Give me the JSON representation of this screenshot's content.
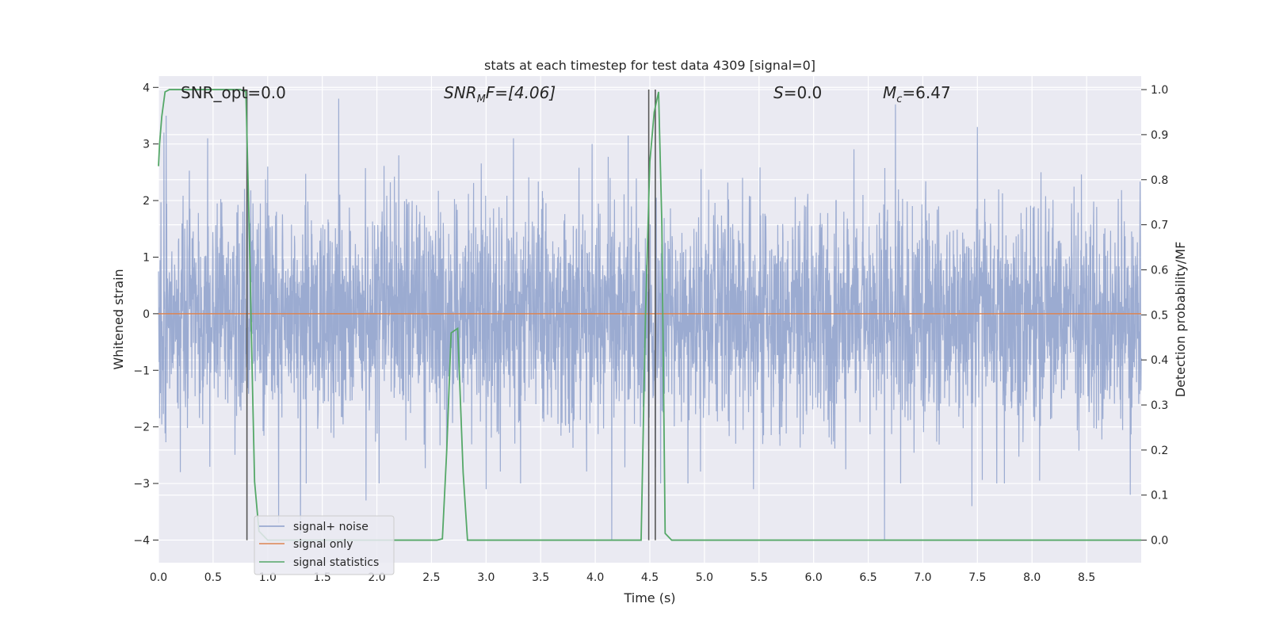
{
  "chart_data": {
    "type": "line",
    "title": "stats at each timestep for test data 4309 [signal=0]",
    "xlabel": "Time (s)",
    "ylabel": "Whitened strain",
    "ylabel_right": "Detection probability/MF",
    "xlim": [
      0.0,
      9.0
    ],
    "ylim": [
      -4.4,
      4.2
    ],
    "ylim_right": [
      -0.05,
      1.03
    ],
    "grid": true,
    "legend_position": "lower-left",
    "x_ticks": [
      "0.0",
      "0.5",
      "1.0",
      "1.5",
      "2.0",
      "2.5",
      "3.0",
      "3.5",
      "4.0",
      "4.5",
      "5.0",
      "5.5",
      "6.0",
      "6.5",
      "7.0",
      "7.5",
      "8.0",
      "8.5"
    ],
    "y_ticks": [
      "4",
      "3",
      "2",
      "1",
      "0",
      "−1",
      "−2",
      "−3",
      "−4"
    ],
    "y_ticks_right": [
      "1.0",
      "0.9",
      "0.8",
      "0.7",
      "0.6",
      "0.5",
      "0.4",
      "0.3",
      "0.2",
      "0.1",
      "0.0"
    ],
    "annotations": {
      "snr_opt": "SNR_opt=0.0",
      "snr_mf_main": "SNR",
      "snr_mf_sub": "M",
      "snr_mf_rest": "F=[4.06]",
      "s_main": "S",
      "s_rest": "=0.0",
      "mc_main": "M",
      "mc_sub": "c",
      "mc_rest": "=6.47"
    },
    "series": [
      {
        "name": "signal+ noise",
        "color": "#8da0cb",
        "description_level": "noise with approx. std 1.0 and spikes up to 3.8 / down to -4.0",
        "spikes_up": [
          [
            0.05,
            3.2
          ],
          [
            0.07,
            3.5
          ],
          [
            0.45,
            3.1
          ],
          [
            1.0,
            2.6
          ],
          [
            1.65,
            3.8
          ],
          [
            2.2,
            2.8
          ],
          [
            3.25,
            3.1
          ],
          [
            4.3,
            3.15
          ],
          [
            6.75,
            3.7
          ],
          [
            7.5,
            3.3
          ],
          [
            8.9,
            3.2
          ]
        ],
        "spikes_down": [
          [
            0.2,
            -2.8
          ],
          [
            1.1,
            -3.7
          ],
          [
            1.3,
            -3.9
          ],
          [
            1.9,
            -3.3
          ],
          [
            3.0,
            -3.1
          ],
          [
            4.15,
            -4.0
          ],
          [
            5.45,
            -3.1
          ],
          [
            6.65,
            -4.0
          ],
          [
            7.45,
            -3.4
          ],
          [
            8.9,
            -3.2
          ]
        ]
      },
      {
        "name": "signal only",
        "color": "#dd8452",
        "x": [
          0.0,
          9.0
        ],
        "y": [
          0.0,
          0.0
        ]
      },
      {
        "name": "signal statistics",
        "color": "#55a868",
        "axis": "right",
        "x": [
          0.0,
          0.01,
          0.03,
          0.06,
          0.1,
          0.2,
          0.4,
          0.6,
          0.75,
          0.8,
          0.81,
          0.83,
          0.86,
          0.88,
          0.92,
          1.0,
          1.1,
          2.55,
          2.6,
          2.64,
          2.68,
          2.74,
          2.79,
          2.83,
          3.2,
          4.42,
          4.46,
          4.5,
          4.54,
          4.58,
          4.61,
          4.64,
          4.7,
          6.0,
          9.0
        ],
        "y": [
          0.83,
          0.88,
          0.94,
          0.995,
          1.0,
          1.0,
          1.0,
          1.0,
          1.0,
          0.995,
          0.9,
          0.7,
          0.35,
          0.13,
          0.02,
          0.0,
          0.0,
          0.0,
          0.003,
          0.2,
          0.46,
          0.47,
          0.15,
          0.0,
          0.0,
          0.0,
          0.5,
          0.84,
          0.95,
          0.995,
          0.7,
          0.015,
          0.0,
          0.0,
          0.0
        ]
      }
    ],
    "vertical_lines": [
      0.81,
      4.49,
      4.55
    ]
  }
}
